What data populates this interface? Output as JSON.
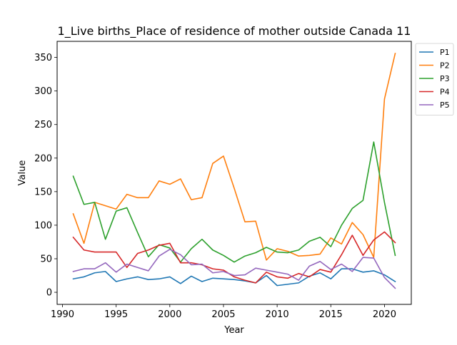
{
  "chart_data": {
    "type": "line",
    "title": "1_Live births_Place of residence of mother outside Canada 11",
    "xlabel": "Year",
    "ylabel": "Value",
    "xlim": [
      1989.5,
      2022.5
    ],
    "ylim": [
      -18,
      374
    ],
    "xticks": [
      1990,
      1995,
      2000,
      2005,
      2010,
      2015,
      2020
    ],
    "yticks": [
      0,
      50,
      100,
      150,
      200,
      250,
      300,
      350
    ],
    "grid": false,
    "legend_position": "outside-right-top",
    "x": [
      1991,
      1992,
      1993,
      1994,
      1995,
      1996,
      1997,
      1998,
      1999,
      2000,
      2001,
      2002,
      2003,
      2004,
      2005,
      2006,
      2007,
      2008,
      2009,
      2010,
      2011,
      2012,
      2013,
      2014,
      2015,
      2016,
      2017,
      2018,
      2019,
      2020,
      2021
    ],
    "series": [
      {
        "name": "P1",
        "color": "#1f77b4",
        "values": [
          20,
          23,
          29,
          31,
          16,
          20,
          23,
          19,
          20,
          23,
          13,
          24,
          16,
          21,
          20,
          19,
          17,
          14,
          25,
          10,
          12,
          14,
          24,
          29,
          20,
          35,
          35,
          30,
          32,
          26,
          16
        ]
      },
      {
        "name": "P2",
        "color": "#ff7f0e",
        "values": [
          117,
          73,
          134,
          129,
          124,
          146,
          141,
          141,
          166,
          161,
          169,
          138,
          141,
          192,
          203,
          155,
          105,
          106,
          48,
          65,
          61,
          54,
          55,
          57,
          81,
          72,
          104,
          86,
          52,
          288,
          356
        ]
      },
      {
        "name": "P3",
        "color": "#2ca02c",
        "values": [
          173,
          131,
          134,
          79,
          121,
          126,
          89,
          53,
          71,
          66,
          45,
          65,
          79,
          63,
          55,
          45,
          54,
          59,
          67,
          60,
          59,
          63,
          76,
          82,
          68,
          100,
          125,
          137,
          224,
          134,
          55
        ]
      },
      {
        "name": "P4",
        "color": "#d62728",
        "values": [
          82,
          63,
          60,
          60,
          60,
          37,
          58,
          63,
          70,
          73,
          44,
          44,
          41,
          35,
          33,
          23,
          18,
          14,
          30,
          23,
          21,
          28,
          23,
          34,
          30,
          56,
          85,
          55,
          78,
          90,
          74
        ]
      },
      {
        "name": "P5",
        "color": "#9467bd",
        "values": [
          31,
          35,
          35,
          44,
          30,
          42,
          37,
          32,
          54,
          64,
          56,
          41,
          42,
          29,
          31,
          25,
          26,
          36,
          33,
          30,
          27,
          18,
          39,
          46,
          34,
          42,
          31,
          52,
          51,
          22,
          6
        ]
      }
    ]
  }
}
